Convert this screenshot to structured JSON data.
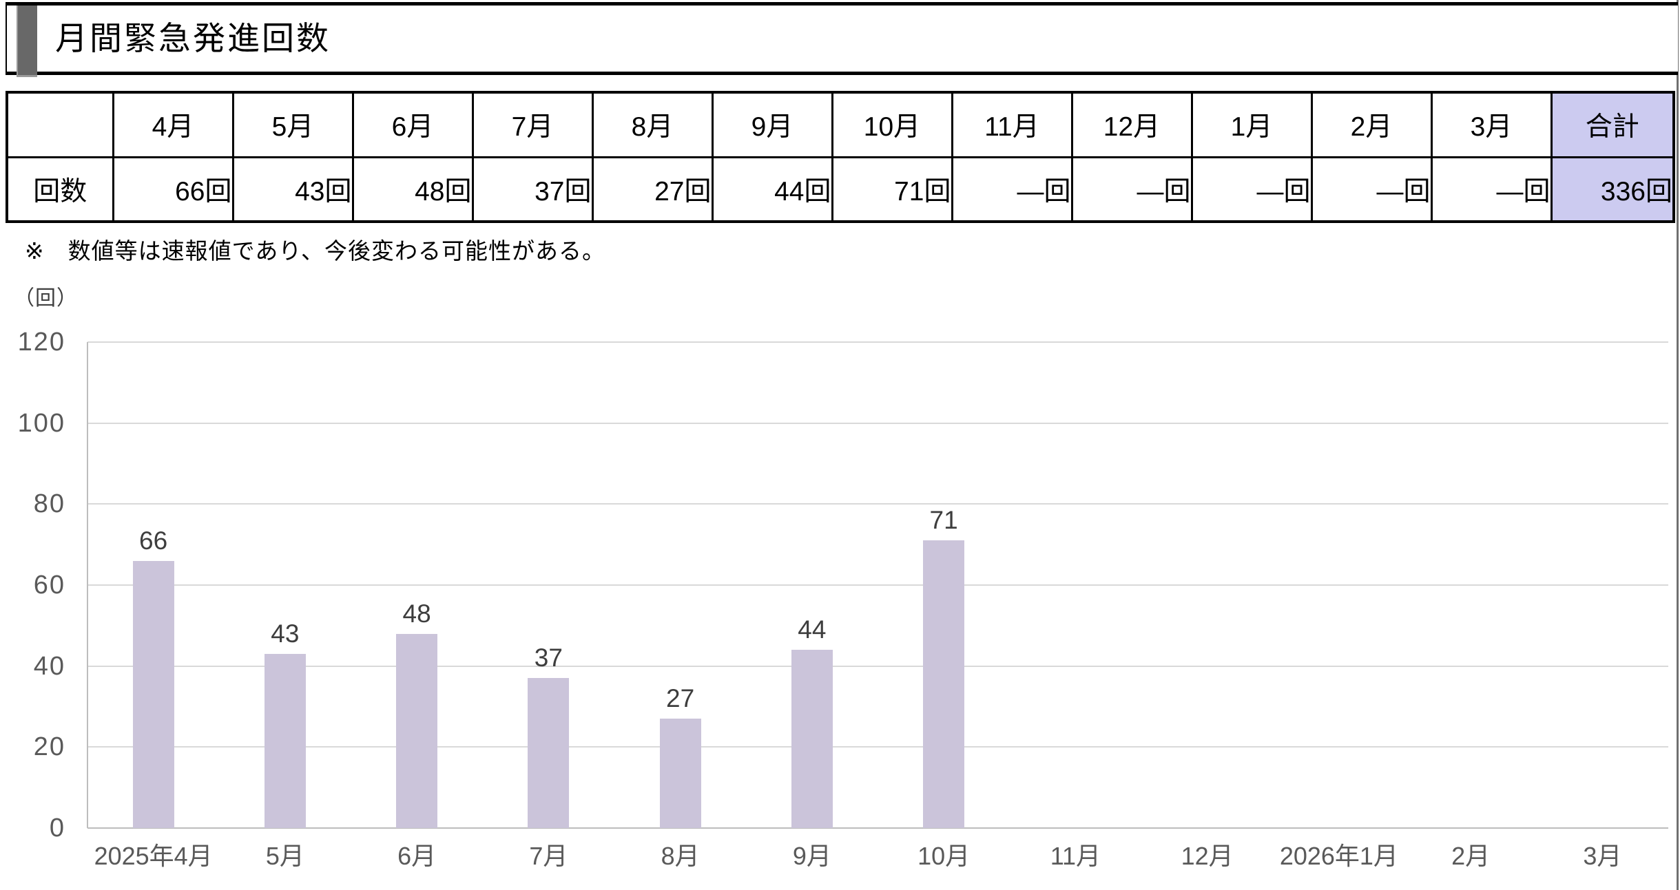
{
  "page": {
    "title": "月間緊急発進回数",
    "note": "※　数値等は速報値であり、今後変わる可能性がある。",
    "unit_label": "（回）"
  },
  "table": {
    "row_header": "回数",
    "columns": [
      "4月",
      "5月",
      "6月",
      "7月",
      "8月",
      "9月",
      "10月",
      "11月",
      "12月",
      "1月",
      "2月",
      "3月",
      "合計"
    ],
    "values": [
      "66回",
      "43回",
      "48回",
      "37回",
      "27回",
      "44回",
      "71回",
      "―回",
      "―回",
      "―回",
      "―回",
      "―回",
      "336回"
    ]
  },
  "chart_data": {
    "type": "bar",
    "title": "",
    "ylabel_unit": "（回）",
    "categories": [
      "2025年4月",
      "5月",
      "6月",
      "7月",
      "8月",
      "9月",
      "10月",
      "11月",
      "12月",
      "2026年1月",
      "2月",
      "3月"
    ],
    "values": [
      66,
      43,
      48,
      37,
      27,
      44,
      71,
      null,
      null,
      null,
      null,
      null
    ],
    "total": 336,
    "ylim": [
      0,
      120
    ],
    "yticks": [
      0,
      20,
      40,
      60,
      80,
      100,
      120
    ],
    "grid": true,
    "legend": "none",
    "bar_color": "#cbc4da",
    "value_label_color": "#3d3d3d",
    "axis_label_color": "#595959",
    "gridline_color": "#d9d9d9",
    "axis_line_color": "#bdbdbd"
  },
  "colors": {
    "total_column_bg": "#cccbf0",
    "title_accent_gray": "#686868",
    "page_edge_gray": "#707070"
  }
}
